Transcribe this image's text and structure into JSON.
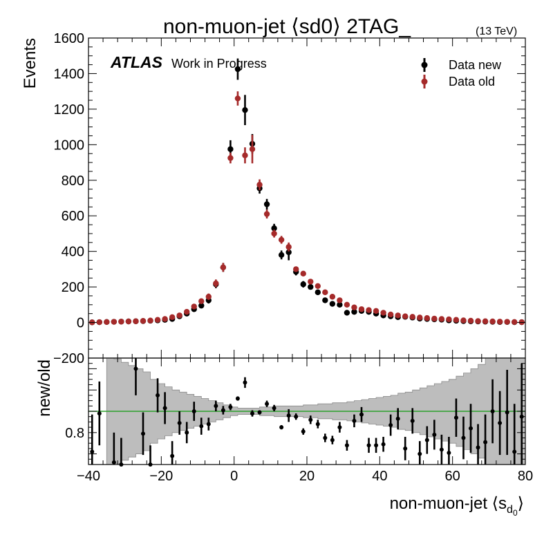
{
  "chart_data": [
    {
      "type": "scatter",
      "title": "non-muon-jet ⟨sd0⟩ 2TAG_",
      "energy_label": "(13 TeV)",
      "atlas_label": "ATLAS",
      "atlas_sublabel": "Work in Progress",
      "ylabel": "Events",
      "ylim": [
        -200,
        1600
      ],
      "xlim": [
        -40,
        80
      ],
      "yticks": [
        "1600",
        "1400",
        "1200",
        "1000",
        "800",
        "600",
        "400",
        "200",
        "0",
        "−200"
      ],
      "legend_placement": "top-right",
      "series": [
        {
          "name": "Data new",
          "color": "#000000",
          "x": [
            -39,
            -37,
            -35,
            -33,
            -31,
            -29,
            -27,
            -25,
            -23,
            -21,
            -19,
            -17,
            -15,
            -13,
            -11,
            -9,
            -7,
            -5,
            -3,
            -1,
            1,
            3,
            5,
            7,
            9,
            11,
            13,
            15,
            17,
            19,
            21,
            23,
            25,
            27,
            29,
            31,
            33,
            35,
            37,
            39,
            41,
            43,
            45,
            47,
            49,
            51,
            53,
            55,
            57,
            59,
            61,
            63,
            65,
            67,
            69,
            71,
            73,
            75,
            77,
            79
          ],
          "y": [
            1,
            2,
            3,
            4,
            5,
            6,
            7,
            8,
            10,
            12,
            15,
            20,
            35,
            50,
            75,
            95,
            125,
            215,
            310,
            975,
            1425,
            1195,
            1005,
            755,
            665,
            530,
            380,
            395,
            285,
            215,
            200,
            170,
            125,
            105,
            100,
            55,
            60,
            65,
            60,
            50,
            40,
            35,
            30,
            32,
            28,
            22,
            20,
            18,
            16,
            12,
            10,
            8,
            7,
            6,
            5,
            4,
            3,
            3,
            2,
            2
          ],
          "err": [
            3,
            3,
            3,
            4,
            4,
            4,
            5,
            5,
            6,
            6,
            7,
            8,
            10,
            12,
            14,
            15,
            18,
            22,
            25,
            50,
            60,
            85,
            55,
            30,
            30,
            25,
            25,
            45,
            20,
            18,
            15,
            15,
            12,
            12,
            10,
            9,
            9,
            9,
            9,
            8,
            8,
            7,
            7,
            7,
            6,
            6,
            6,
            6,
            5,
            5,
            5,
            4,
            4,
            4,
            4,
            3,
            3,
            3,
            3,
            3
          ]
        },
        {
          "name": "Data old",
          "color": "#a52a2a",
          "x": [
            -39,
            -37,
            -35,
            -33,
            -31,
            -29,
            -27,
            -25,
            -23,
            -21,
            -19,
            -17,
            -15,
            -13,
            -11,
            -9,
            -7,
            -5,
            -3,
            -1,
            1,
            3,
            5,
            7,
            9,
            11,
            13,
            15,
            17,
            19,
            21,
            23,
            25,
            27,
            29,
            31,
            33,
            35,
            37,
            39,
            41,
            43,
            45,
            47,
            49,
            51,
            53,
            55,
            57,
            59,
            61,
            63,
            65,
            67,
            69,
            71,
            73,
            75,
            77,
            79
          ],
          "y": [
            1,
            2,
            3,
            4,
            5,
            6,
            7,
            9,
            11,
            15,
            20,
            30,
            40,
            60,
            90,
            120,
            145,
            220,
            310,
            925,
            1260,
            940,
            975,
            775,
            610,
            500,
            465,
            425,
            300,
            275,
            230,
            205,
            170,
            145,
            125,
            100,
            85,
            75,
            70,
            65,
            55,
            45,
            40,
            35,
            32,
            28,
            25,
            22,
            20,
            18,
            15,
            12,
            10,
            8,
            7,
            6,
            5,
            4,
            3,
            2
          ],
          "err": [
            3,
            3,
            3,
            4,
            4,
            4,
            5,
            5,
            6,
            6,
            7,
            9,
            10,
            12,
            14,
            15,
            18,
            22,
            25,
            30,
            40,
            45,
            80,
            30,
            25,
            22,
            22,
            25,
            15,
            14,
            13,
            12,
            11,
            10,
            10,
            9,
            9,
            8,
            8,
            8,
            7,
            7,
            7,
            6,
            6,
            6,
            6,
            5,
            5,
            5,
            5,
            4,
            4,
            4,
            4,
            3,
            3,
            3,
            3,
            3
          ]
        }
      ]
    },
    {
      "type": "scatter",
      "ylabel": "new/old",
      "xlabel": "non-muon-jet ⟨s",
      "xlabel_sub": "d",
      "xlabel_subsub": "0",
      "xlabel_end": "⟩",
      "xlim": [
        -40,
        80
      ],
      "ylim": [
        0.5,
        1.5
      ],
      "yticks": [
        "0.8"
      ],
      "xticks": [
        "−40",
        "−20",
        "0",
        "20",
        "40",
        "60",
        "80"
      ],
      "reference_line": {
        "y": 1.0,
        "color": "#2ca02c"
      },
      "band_color": "#bdbdbd",
      "band": {
        "x_edges": [
          -35,
          -33,
          -31,
          -29,
          -27,
          -25,
          -23,
          -21,
          -19,
          -17,
          -15,
          -13,
          -11,
          -9,
          -7,
          -5,
          -3,
          -1,
          1,
          3,
          5,
          7,
          9,
          11,
          13,
          15,
          17,
          19,
          21,
          23,
          25,
          27,
          29,
          31,
          33,
          35,
          37,
          39,
          41,
          43,
          45,
          47,
          49,
          51,
          53,
          55,
          57,
          59,
          61,
          63,
          65,
          67,
          69,
          71,
          73,
          75,
          77,
          79,
          80
        ],
        "half_width": [
          0.54,
          0.49,
          0.46,
          0.43,
          0.4,
          0.37,
          0.3,
          0.26,
          0.23,
          0.2,
          0.18,
          0.16,
          0.14,
          0.12,
          0.1,
          0.08,
          0.06,
          0.04,
          0.03,
          0.03,
          0.03,
          0.04,
          0.04,
          0.05,
          0.05,
          0.05,
          0.05,
          0.06,
          0.06,
          0.07,
          0.07,
          0.08,
          0.08,
          0.09,
          0.1,
          0.11,
          0.12,
          0.13,
          0.14,
          0.15,
          0.17,
          0.18,
          0.2,
          0.22,
          0.24,
          0.26,
          0.28,
          0.3,
          0.33,
          0.36,
          0.4,
          0.44,
          0.5,
          0.58,
          0.66,
          0.74,
          0.82,
          0.9
        ]
      },
      "points": {
        "x": [
          -39,
          -37,
          -33,
          -31,
          -27,
          -25,
          -23,
          -21,
          -19,
          -17,
          -15,
          -13,
          -11,
          -9,
          -7,
          -5,
          -3,
          -1,
          1,
          3,
          5,
          7,
          9,
          11,
          13,
          15,
          17,
          19,
          21,
          23,
          25,
          27,
          29,
          31,
          33,
          35,
          37,
          39,
          41,
          43,
          45,
          47,
          49,
          51,
          53,
          55,
          57,
          59,
          61,
          63,
          65,
          67,
          69,
          71,
          73,
          75,
          77,
          79
        ],
        "y": [
          0.62,
          0.98,
          0.52,
          0.5,
          1.4,
          0.79,
          0.5,
          1.15,
          1.03,
          0.58,
          0.89,
          0.8,
          1.0,
          0.86,
          0.88,
          1.05,
          1.01,
          1.04,
          1.12,
          1.27,
          0.98,
          0.99,
          1.07,
          1.03,
          0.85,
          0.96,
          0.95,
          0.81,
          0.92,
          0.88,
          0.75,
          0.73,
          0.85,
          0.68,
          0.91,
          0.97,
          0.68,
          0.68,
          0.69,
          0.87,
          0.93,
          0.65,
          0.91,
          0.6,
          0.73,
          0.78,
          0.64,
          0.61,
          0.94,
          0.75,
          0.84,
          0.66,
          0.71,
          1.0,
          0.89,
          0.99,
          0.62,
          0.95
        ],
        "err": [
          0.35,
          0.3,
          0.28,
          0.25,
          0.25,
          0.2,
          0.18,
          0.16,
          0.15,
          0.14,
          0.11,
          0.1,
          0.09,
          0.08,
          0.06,
          0.05,
          0.04,
          0.03,
          0.02,
          0.05,
          0.03,
          0.02,
          0.03,
          0.03,
          0.02,
          0.06,
          0.03,
          0.03,
          0.04,
          0.04,
          0.04,
          0.04,
          0.05,
          0.05,
          0.06,
          0.07,
          0.07,
          0.07,
          0.07,
          0.1,
          0.1,
          0.11,
          0.12,
          0.12,
          0.13,
          0.14,
          0.14,
          0.15,
          0.18,
          0.2,
          0.23,
          0.22,
          0.26,
          0.3,
          0.3,
          0.4,
          0.45,
          0.5
        ]
      }
    }
  ]
}
